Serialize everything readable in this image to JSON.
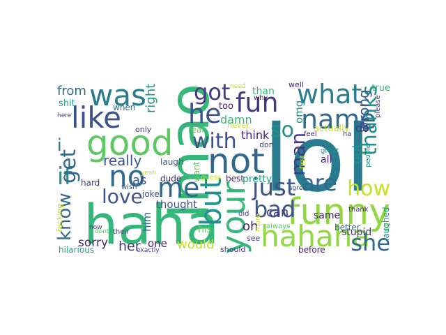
{
  "word_cloud": {
    "colors": {
      "background": "#ffffff",
      "dark_purple": "#481f70",
      "indigo": "#443983",
      "slate_blue": "#3b528b",
      "steel_blue": "#31688e",
      "teal": "#287c8e",
      "sea_teal": "#21918c",
      "aqua_green": "#20a386",
      "green": "#35b779",
      "lime_green": "#5ec962",
      "yellow_green": "#90d743",
      "yellow": "#c8e020"
    },
    "words": [
      {
        "text": "lol",
        "color": "teal"
      },
      {
        "text": "haha",
        "color": "green"
      },
      {
        "text": "lmao",
        "color": "green"
      },
      {
        "text": "funny",
        "color": "yellow_green"
      },
      {
        "text": "not",
        "color": "steel_blue"
      },
      {
        "text": "hahaha",
        "color": "yellow_green"
      },
      {
        "text": "your",
        "color": "green"
      },
      {
        "text": "good",
        "color": "lime_green"
      },
      {
        "text": "was",
        "color": "teal"
      },
      {
        "text": "like",
        "color": "slate_blue"
      },
      {
        "text": "what",
        "color": "teal"
      },
      {
        "text": "name",
        "color": "steel_blue"
      },
      {
        "text": "fun",
        "color": "indigo"
      },
      {
        "text": "no",
        "color": "steel_blue"
      },
      {
        "text": "me",
        "color": "steel_blue"
      },
      {
        "text": "but",
        "color": "sea_teal"
      },
      {
        "text": "he",
        "color": "slate_blue"
      },
      {
        "text": "thanks",
        "color": "sea_teal"
      },
      {
        "text": "she",
        "color": "steel_blue"
      },
      {
        "text": "bad",
        "color": "slate_blue"
      },
      {
        "text": "just",
        "color": "slate_blue"
      },
      {
        "text": "are",
        "color": "steel_blue"
      },
      {
        "text": "how",
        "color": "yellow"
      },
      {
        "text": "got",
        "color": "indigo"
      },
      {
        "text": "with",
        "color": "slate_blue"
      },
      {
        "text": "love",
        "color": "slate_blue"
      },
      {
        "text": "if",
        "color": "sea_teal"
      },
      {
        "text": "know",
        "color": "steel_blue"
      },
      {
        "text": "get",
        "color": "steel_blue"
      },
      {
        "text": "i",
        "color": "steel_blue"
      },
      {
        "text": "so",
        "color": "sea_teal"
      },
      {
        "text": "man",
        "color": "indigo"
      },
      {
        "text": "from",
        "color": "steel_blue"
      },
      {
        "text": "really",
        "color": "slate_blue"
      },
      {
        "text": "right",
        "color": "sea_teal"
      },
      {
        "text": "damn",
        "color": "green"
      },
      {
        "text": "omg",
        "color": "sea_teal"
      },
      {
        "text": "wrong",
        "color": "slate_blue"
      },
      {
        "text": "out",
        "color": "sea_teal"
      },
      {
        "text": "do",
        "color": "indigo"
      },
      {
        "text": "can",
        "color": "indigo"
      },
      {
        "text": "oh",
        "color": "dark_purple"
      },
      {
        "text": "think",
        "color": "dark_purple"
      },
      {
        "text": "sorry",
        "color": "dark_purple"
      },
      {
        "text": "her",
        "color": "indigo"
      },
      {
        "text": "would",
        "color": "yellow"
      },
      {
        "text": "as",
        "color": "slate_blue"
      },
      {
        "text": "thought",
        "color": "slate_blue"
      },
      {
        "text": "him",
        "color": "steel_blue"
      },
      {
        "text": "his",
        "color": "lime_green"
      },
      {
        "text": "one",
        "color": "dark_purple"
      },
      {
        "text": "same",
        "color": "dark_purple"
      },
      {
        "text": "pretty",
        "color": "aqua_green"
      },
      {
        "text": "all",
        "color": "dark_purple"
      },
      {
        "text": "than",
        "color": "green"
      },
      {
        "text": "true",
        "color": "green"
      },
      {
        "text": "when",
        "color": "steel_blue"
      },
      {
        "text": "shit",
        "color": "aqua_green"
      },
      {
        "text": "too",
        "color": "dark_purple"
      },
      {
        "text": "why",
        "color": "dark_purple"
      },
      {
        "text": "real",
        "color": "lime_green"
      },
      {
        "text": "never",
        "color": "yellow"
      },
      {
        "text": "need",
        "color": "yellow"
      },
      {
        "text": "well",
        "color": "dark_purple"
      },
      {
        "text": "please",
        "color": "indigo"
      },
      {
        "text": "feel",
        "color": "dark_purple"
      },
      {
        "text": "actually",
        "color": "yellow"
      },
      {
        "text": "great",
        "color": "sea_teal"
      },
      {
        "text": "people",
        "color": "sea_teal"
      },
      {
        "text": "first",
        "color": "yellow"
      },
      {
        "text": "ha",
        "color": "indigo"
      },
      {
        "text": "don",
        "color": "indigo"
      },
      {
        "text": "laugh",
        "color": "slate_blue"
      },
      {
        "text": "best",
        "color": "dark_purple"
      },
      {
        "text": "want",
        "color": "lime_green"
      },
      {
        "text": "guess",
        "color": "yellow"
      },
      {
        "text": "dude",
        "color": "dark_purple"
      },
      {
        "text": "yeah",
        "color": "yellow"
      },
      {
        "text": "joke",
        "color": "slate_blue"
      },
      {
        "text": "wish",
        "color": "slate_blue"
      },
      {
        "text": "hard",
        "color": "indigo"
      },
      {
        "text": "only",
        "color": "indigo"
      },
      {
        "text": "here",
        "color": "slate_blue"
      },
      {
        "text": "did",
        "color": "indigo"
      },
      {
        "text": "more",
        "color": "yellow"
      },
      {
        "text": "see",
        "color": "indigo"
      },
      {
        "text": "always",
        "color": "lime_green"
      },
      {
        "text": "agree",
        "color": "slate_blue"
      },
      {
        "text": "before",
        "color": "dark_purple"
      },
      {
        "text": "better",
        "color": "steel_blue"
      },
      {
        "text": "thank",
        "color": "dark_purple"
      },
      {
        "text": "stupid",
        "color": "indigo"
      },
      {
        "text": "or",
        "color": "lime_green"
      },
      {
        "text": "laughed",
        "color": "sea_teal"
      },
      {
        "text": "should",
        "color": "indigo"
      },
      {
        "text": "fucking",
        "color": "yellow"
      },
      {
        "text": "dont",
        "color": "lime_green"
      },
      {
        "text": "their",
        "color": "indigo"
      },
      {
        "text": "now",
        "color": "indigo"
      },
      {
        "text": "hilarious",
        "color": "aqua_green"
      },
      {
        "text": "exactly",
        "color": "indigo"
      }
    ]
  }
}
